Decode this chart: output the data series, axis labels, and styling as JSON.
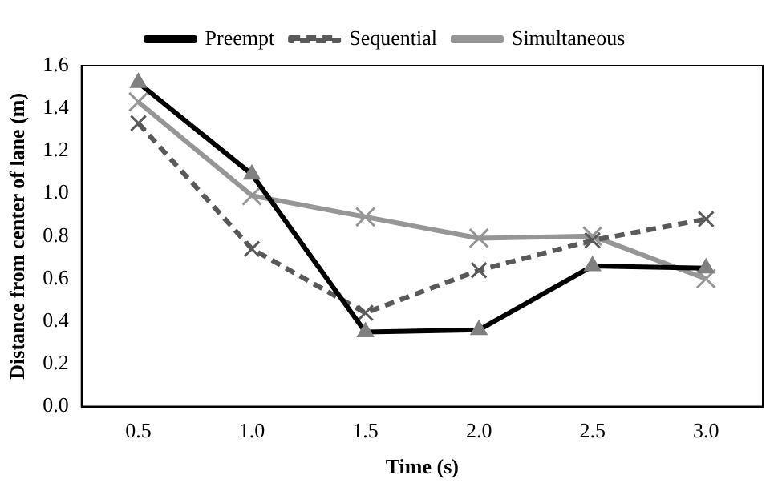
{
  "chart_data": {
    "type": "line",
    "xlabel": "Time (s)",
    "ylabel": "Distance from center of lane (m)",
    "categories": [
      "0.5",
      "1.0",
      "1.5",
      "2.0",
      "2.5",
      "3.0"
    ],
    "ylim": [
      0,
      1.6
    ],
    "yticks": [
      {
        "value": 0,
        "label": "0.0"
      },
      {
        "value": 0.2,
        "label": "0.2"
      },
      {
        "value": 0.4,
        "label": "0.4"
      },
      {
        "value": 0.6,
        "label": "0.6"
      },
      {
        "value": 0.8,
        "label": "0.8"
      },
      {
        "value": 1,
        "label": "1.0"
      },
      {
        "value": 1.2,
        "label": "1.2"
      },
      {
        "value": 1.4,
        "label": "1.4"
      },
      {
        "value": 1.6,
        "label": "1.6"
      }
    ],
    "grid": false,
    "legend": "top",
    "series": [
      {
        "name": "Preempt",
        "color": "#000000",
        "marker": "triangle",
        "line_style": "solid",
        "values": [
          1.52,
          1.09,
          0.35,
          0.36,
          0.66,
          0.65
        ]
      },
      {
        "name": "Sequential",
        "color": "#595959",
        "marker": "cross",
        "line_style": "dashed",
        "values": [
          1.33,
          0.74,
          0.44,
          0.64,
          0.78,
          0.88
        ]
      },
      {
        "name": "Simultaneous",
        "color": "#969696",
        "marker": "cross",
        "line_style": "solid",
        "values": [
          1.43,
          0.99,
          0.89,
          0.79,
          0.8,
          0.6
        ]
      }
    ]
  }
}
